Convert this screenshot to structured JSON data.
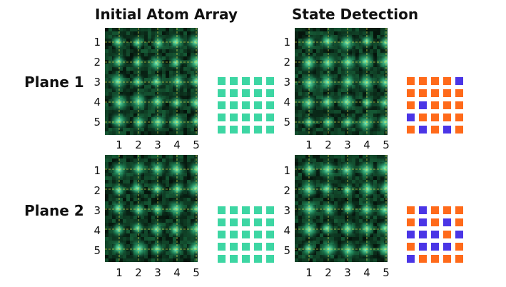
{
  "headers": {
    "initial": "Initial Atom Array",
    "detection": "State Detection"
  },
  "rows": [
    {
      "label": "Plane 1"
    },
    {
      "label": "Plane 2"
    }
  ],
  "ticks": [
    "1",
    "2",
    "3",
    "4",
    "5"
  ],
  "colors": {
    "atom": "#3dd6a3",
    "bright": "#ff6a1a",
    "dark": "#4a35e6",
    "grid_line": "#e6e24a",
    "image_bg": "#0b1a14"
  },
  "initial_arrays": [
    [
      [
        1,
        1,
        1,
        1,
        1
      ],
      [
        1,
        1,
        1,
        1,
        1
      ],
      [
        1,
        1,
        1,
        1,
        1
      ],
      [
        1,
        1,
        1,
        1,
        1
      ],
      [
        1,
        1,
        1,
        1,
        1
      ]
    ],
    [
      [
        1,
        1,
        1,
        1,
        1
      ],
      [
        1,
        1,
        1,
        1,
        1
      ],
      [
        1,
        1,
        1,
        1,
        1
      ],
      [
        1,
        1,
        1,
        1,
        1
      ],
      [
        1,
        1,
        1,
        1,
        1
      ]
    ]
  ],
  "state_arrays": [
    [
      [
        "o",
        "o",
        "o",
        "o",
        "b"
      ],
      [
        "o",
        "o",
        "o",
        "o",
        "o"
      ],
      [
        "o",
        "b",
        "o",
        "o",
        "o"
      ],
      [
        "b",
        "o",
        "o",
        "o",
        "o"
      ],
      [
        "o",
        "b",
        "o",
        "b",
        "o"
      ]
    ],
    [
      [
        "o",
        "b",
        "o",
        "o",
        "o"
      ],
      [
        "o",
        "b",
        "o",
        "b",
        "o"
      ],
      [
        "b",
        "b",
        "b",
        "o",
        "b"
      ],
      [
        "o",
        "b",
        "b",
        "b",
        "o"
      ],
      [
        "b",
        "o",
        "o",
        "o",
        "o"
      ]
    ]
  ]
}
